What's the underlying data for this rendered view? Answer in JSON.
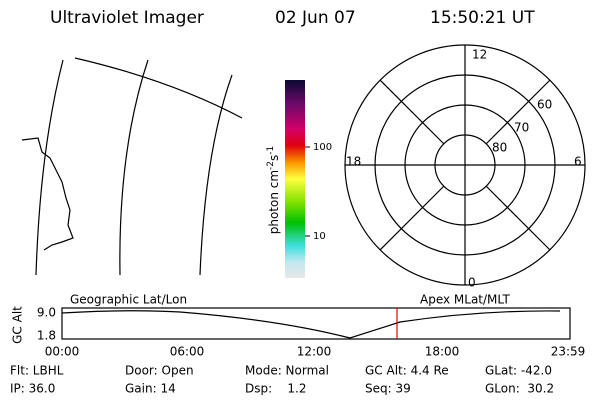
{
  "header": {
    "title": "Ultraviolet Imager",
    "date": "02 Jun 07",
    "time": "15:50:21 UT"
  },
  "colorbar": {
    "label": "photon cm",
    "exp1": "-2",
    "unit2": "s",
    "exp2": "-1",
    "ticks": [
      "100",
      "10"
    ]
  },
  "polar": {
    "labels": [
      "12",
      "6",
      "0",
      "18",
      "60",
      "70",
      "80"
    ]
  },
  "timeline": {
    "axis_label": "GC Alt",
    "yticks": [
      "9.0",
      "1.8"
    ],
    "left_label": "Geographic Lat/Lon",
    "right_label": "Apex MLat/MLT",
    "xticks": [
      "00:00",
      "06:00",
      "12:00",
      "18:00",
      "23:59"
    ]
  },
  "status": {
    "rows": [
      [
        "Flt: LBHL",
        "Door: Open",
        "Mode: Normal",
        "GC Alt: 4.4 Re",
        "GLat: -42.0"
      ],
      [
        "IP: 36.0",
        "Gain: 14",
        "Dsp:    1.2",
        "Seq: 39",
        "GLon:  30.2"
      ]
    ]
  }
}
